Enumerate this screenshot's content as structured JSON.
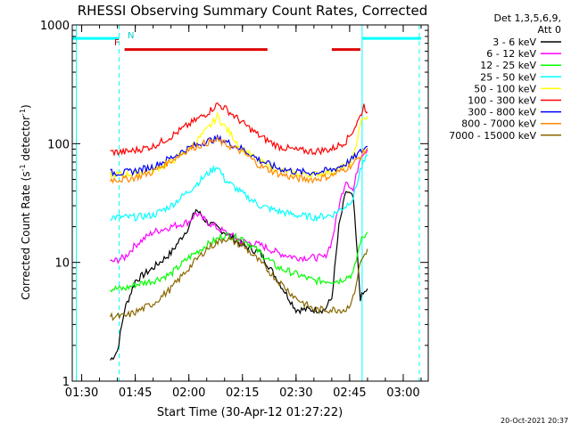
{
  "chart_data": {
    "type": "line",
    "title": "RHESSI Observing Summary Count Rates, Corrected",
    "xlabel": "Start Time (30-Apr-12 01:27:22)",
    "ylabel_parts": [
      "Corrected Count Rate (s",
      "-1",
      " detector",
      "-1",
      ")"
    ],
    "yscale": "log",
    "ylim": [
      1,
      1000
    ],
    "xlim": [
      "01:27:22",
      "03:07:00"
    ],
    "x_ticks": [
      "01:30",
      "01:45",
      "02:00",
      "02:15",
      "02:30",
      "02:45",
      "03:00"
    ],
    "y_ticks": [
      "1",
      "10",
      "100",
      "1000"
    ],
    "legend_header": [
      "Det 1,3,5,6,9,",
      "Att 0"
    ],
    "legend_position": "top-right outside",
    "timestamp": "20-Oct-2021 20:37",
    "flags": [
      {
        "label": "F",
        "color": "#cc0000"
      },
      {
        "label": "N",
        "color": "#00cccc"
      }
    ],
    "series": [
      {
        "name": "3 - 6 keV",
        "color": "#000000",
        "points": [
          [
            "01:38",
            1.5
          ],
          [
            "01:40",
            1.8
          ],
          [
            "01:42",
            4
          ],
          [
            "01:45",
            7
          ],
          [
            "01:50",
            9
          ],
          [
            "01:55",
            12
          ],
          [
            "02:00",
            20
          ],
          [
            "02:02",
            28
          ],
          [
            "02:05",
            22
          ],
          [
            "02:10",
            18
          ],
          [
            "02:15",
            14
          ],
          [
            "02:20",
            12
          ],
          [
            "02:25",
            7
          ],
          [
            "02:30",
            4
          ],
          [
            "02:35",
            4
          ],
          [
            "02:38",
            4
          ],
          [
            "02:40",
            5
          ],
          [
            "02:42",
            20
          ],
          [
            "02:44",
            40
          ],
          [
            "02:46",
            35
          ],
          [
            "02:48",
            5
          ],
          [
            "02:50",
            6
          ]
        ]
      },
      {
        "name": "6 - 12 keV",
        "color": "#ff00ff",
        "points": [
          [
            "01:38",
            10
          ],
          [
            "01:42",
            11
          ],
          [
            "01:45",
            14
          ],
          [
            "01:50",
            18
          ],
          [
            "01:55",
            20
          ],
          [
            "02:00",
            22
          ],
          [
            "02:02",
            26
          ],
          [
            "02:05",
            22
          ],
          [
            "02:10",
            18
          ],
          [
            "02:15",
            15
          ],
          [
            "02:20",
            14
          ],
          [
            "02:25",
            12
          ],
          [
            "02:30",
            11
          ],
          [
            "02:35",
            11
          ],
          [
            "02:38",
            11
          ],
          [
            "02:40",
            15
          ],
          [
            "02:42",
            30
          ],
          [
            "02:44",
            50
          ],
          [
            "02:46",
            40
          ],
          [
            "02:48",
            80
          ],
          [
            "02:50",
            90
          ]
        ]
      },
      {
        "name": "12 - 25 keV",
        "color": "#00ff00",
        "points": [
          [
            "01:38",
            6
          ],
          [
            "01:42",
            6
          ],
          [
            "01:45",
            6.5
          ],
          [
            "01:50",
            7
          ],
          [
            "01:55",
            8
          ],
          [
            "02:00",
            11
          ],
          [
            "02:05",
            14
          ],
          [
            "02:10",
            17
          ],
          [
            "02:15",
            16
          ],
          [
            "02:20",
            12
          ],
          [
            "02:25",
            9
          ],
          [
            "02:30",
            8
          ],
          [
            "02:35",
            7
          ],
          [
            "02:38",
            7
          ],
          [
            "02:42",
            7
          ],
          [
            "02:46",
            8
          ],
          [
            "02:48",
            15
          ],
          [
            "02:50",
            18
          ]
        ]
      },
      {
        "name": "25 - 50 keV",
        "color": "#00ffff",
        "points": [
          [
            "01:38",
            24
          ],
          [
            "01:42",
            24
          ],
          [
            "01:45",
            24
          ],
          [
            "01:50",
            25
          ],
          [
            "01:55",
            30
          ],
          [
            "02:00",
            40
          ],
          [
            "02:05",
            55
          ],
          [
            "02:08",
            65
          ],
          [
            "02:10",
            50
          ],
          [
            "02:15",
            38
          ],
          [
            "02:20",
            30
          ],
          [
            "02:25",
            27
          ],
          [
            "02:30",
            25
          ],
          [
            "02:35",
            24
          ],
          [
            "02:40",
            25
          ],
          [
            "02:44",
            30
          ],
          [
            "02:46",
            35
          ],
          [
            "02:48",
            60
          ],
          [
            "02:50",
            80
          ]
        ]
      },
      {
        "name": "50 - 100 keV",
        "color": "#ffff00",
        "points": [
          [
            "01:38",
            55
          ],
          [
            "01:42",
            55
          ],
          [
            "01:45",
            56
          ],
          [
            "01:50",
            60
          ],
          [
            "01:55",
            70
          ],
          [
            "02:00",
            90
          ],
          [
            "02:05",
            130
          ],
          [
            "02:08",
            170
          ],
          [
            "02:10",
            140
          ],
          [
            "02:15",
            90
          ],
          [
            "02:20",
            70
          ],
          [
            "02:25",
            60
          ],
          [
            "02:30",
            56
          ],
          [
            "02:35",
            55
          ],
          [
            "02:40",
            58
          ],
          [
            "02:44",
            65
          ],
          [
            "02:46",
            75
          ],
          [
            "02:48",
            150
          ],
          [
            "02:50",
            170
          ]
        ]
      },
      {
        "name": "100 - 300 keV",
        "color": "#ff0000",
        "points": [
          [
            "01:38",
            85
          ],
          [
            "01:42",
            85
          ],
          [
            "01:45",
            88
          ],
          [
            "01:50",
            95
          ],
          [
            "01:55",
            115
          ],
          [
            "02:00",
            145
          ],
          [
            "02:05",
            180
          ],
          [
            "02:08",
            215
          ],
          [
            "02:10",
            200
          ],
          [
            "02:15",
            150
          ],
          [
            "02:20",
            115
          ],
          [
            "02:25",
            95
          ],
          [
            "02:30",
            88
          ],
          [
            "02:35",
            86
          ],
          [
            "02:40",
            90
          ],
          [
            "02:44",
            105
          ],
          [
            "02:46",
            130
          ],
          [
            "02:48",
            170
          ],
          [
            "02:49",
            210
          ],
          [
            "02:50",
            185
          ]
        ]
      },
      {
        "name": "300 - 800 keV",
        "color": "#0000ff",
        "points": [
          [
            "01:38",
            57
          ],
          [
            "01:42",
            57
          ],
          [
            "01:45",
            59
          ],
          [
            "01:50",
            64
          ],
          [
            "01:55",
            76
          ],
          [
            "02:00",
            92
          ],
          [
            "02:05",
            105
          ],
          [
            "02:08",
            110
          ],
          [
            "02:10",
            105
          ],
          [
            "02:15",
            90
          ],
          [
            "02:20",
            72
          ],
          [
            "02:25",
            62
          ],
          [
            "02:30",
            58
          ],
          [
            "02:35",
            57
          ],
          [
            "02:40",
            60
          ],
          [
            "02:44",
            68
          ],
          [
            "02:46",
            75
          ],
          [
            "02:48",
            85
          ],
          [
            "02:50",
            95
          ]
        ]
      },
      {
        "name": "800 - 7000 keV",
        "color": "#ff8800",
        "points": [
          [
            "01:38",
            50
          ],
          [
            "01:42",
            50
          ],
          [
            "01:45",
            52
          ],
          [
            "01:50",
            58
          ],
          [
            "01:55",
            72
          ],
          [
            "02:00",
            90
          ],
          [
            "02:05",
            102
          ],
          [
            "02:08",
            106
          ],
          [
            "02:10",
            100
          ],
          [
            "02:15",
            85
          ],
          [
            "02:20",
            65
          ],
          [
            "02:25",
            56
          ],
          [
            "02:30",
            51
          ],
          [
            "02:35",
            50
          ],
          [
            "02:40",
            54
          ],
          [
            "02:44",
            62
          ],
          [
            "02:46",
            68
          ],
          [
            "02:48",
            78
          ],
          [
            "02:50",
            92
          ]
        ]
      },
      {
        "name": "7000 - 15000 keV",
        "color": "#886600",
        "points": [
          [
            "01:38",
            3.5
          ],
          [
            "01:42",
            3.5
          ],
          [
            "01:45",
            3.8
          ],
          [
            "01:50",
            4.5
          ],
          [
            "01:55",
            6
          ],
          [
            "02:00",
            9
          ],
          [
            "02:05",
            13
          ],
          [
            "02:10",
            16
          ],
          [
            "02:15",
            14
          ],
          [
            "02:20",
            10
          ],
          [
            "02:25",
            7
          ],
          [
            "02:30",
            5
          ],
          [
            "02:35",
            4
          ],
          [
            "02:40",
            4
          ],
          [
            "02:44",
            4
          ],
          [
            "02:46",
            5
          ],
          [
            "02:48",
            10
          ],
          [
            "02:50",
            13
          ]
        ]
      }
    ],
    "bars": [
      {
        "color": "#00ffff",
        "start": "01:27:22",
        "end": "01:40:30",
        "y": 770
      },
      {
        "color": "#00ffff",
        "start": "02:48:30",
        "end": "03:05:00",
        "y": 770
      },
      {
        "color": "#dd0000",
        "start": "01:42:00",
        "end": "02:22:00",
        "y": 620
      },
      {
        "color": "#dd0000",
        "start": "02:40:00",
        "end": "02:48:00",
        "y": 620
      }
    ],
    "vlines": [
      {
        "time": "01:28:30",
        "color": "#00ffff",
        "style": "solid"
      },
      {
        "time": "01:40:30",
        "color": "#00ffff",
        "style": "dashed"
      },
      {
        "time": "02:48:30",
        "color": "#00ffff",
        "style": "solid"
      },
      {
        "time": "03:04:30",
        "color": "#00ffff",
        "style": "dashed"
      }
    ]
  }
}
